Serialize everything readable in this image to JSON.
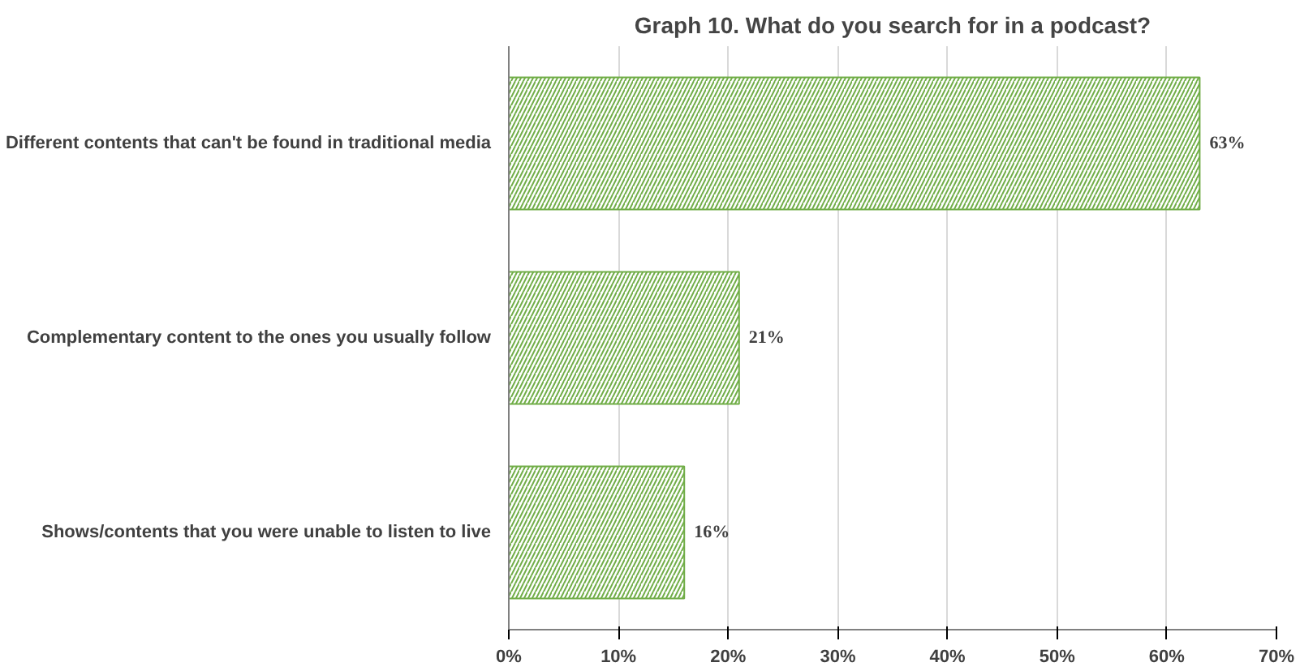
{
  "chart_data": {
    "type": "bar",
    "orientation": "horizontal",
    "title": "Graph 10. What do you search for in a podcast?",
    "categories": [
      "Different contents that can't be found in traditional media",
      "Complementary content to the ones you usually follow",
      "Shows/contents that you were unable to listen to live"
    ],
    "values": [
      63,
      21,
      16
    ],
    "value_labels": [
      "63%",
      "21%",
      "16%"
    ],
    "color": "#70ad47",
    "xlim": [
      0,
      70
    ],
    "xticks": [
      {
        "value": 0,
        "label": "0%"
      },
      {
        "value": 10,
        "label": "10%"
      },
      {
        "value": 20,
        "label": "20%"
      },
      {
        "value": 30,
        "label": "30%"
      },
      {
        "value": 40,
        "label": "40%"
      },
      {
        "value": 50,
        "label": "50%"
      },
      {
        "value": 60,
        "label": "60%"
      },
      {
        "value": 70,
        "label": "70%"
      }
    ],
    "grid": "x"
  }
}
